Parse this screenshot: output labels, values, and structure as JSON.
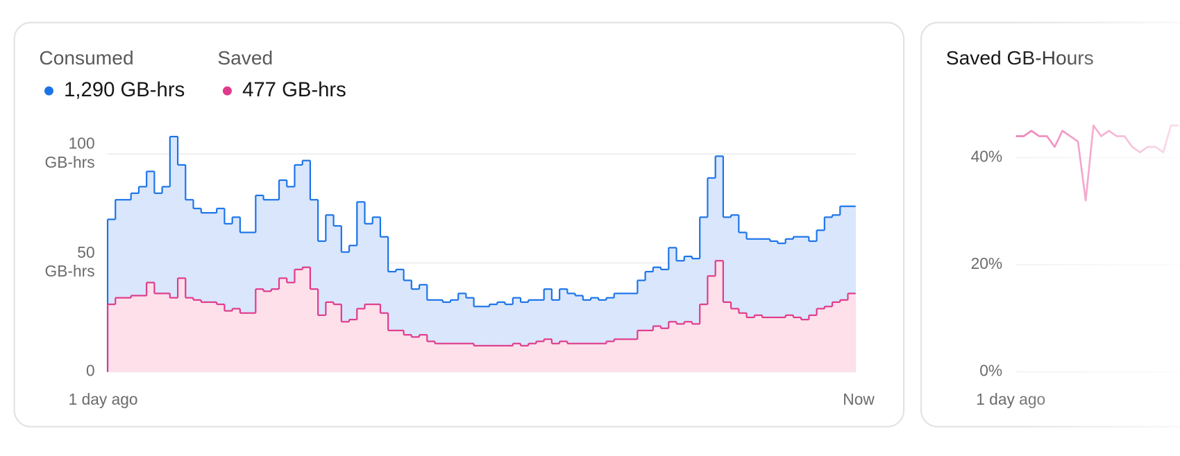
{
  "chart_data": [
    {
      "type": "area",
      "step": true,
      "x_start_label": "1 day ago",
      "x_end_label": "Now",
      "ylim": [
        0,
        110
      ],
      "yticks": [
        {
          "value": 0,
          "label": "0"
        },
        {
          "value": 50,
          "label": "50 GB-hrs"
        },
        {
          "value": 100,
          "label": "100 GB-hrs"
        }
      ],
      "grid": true,
      "series": [
        {
          "name": "Consumed",
          "total": "1,290 GB-hrs",
          "color": "#1a73e8",
          "fill": "#d9e6fb",
          "values": [
            70,
            79,
            79,
            82,
            85,
            92,
            82,
            85,
            108,
            95,
            79,
            75,
            73,
            73,
            75,
            68,
            71,
            64,
            64,
            81,
            79,
            79,
            88,
            85,
            95,
            97,
            79,
            60,
            72,
            67,
            55,
            58,
            78,
            68,
            71,
            62,
            46,
            47,
            42,
            38,
            40,
            33,
            33,
            32,
            33,
            36,
            34,
            30,
            30,
            31,
            32,
            31,
            34,
            32,
            33,
            33,
            38,
            33,
            38,
            36,
            35,
            33,
            34,
            33,
            34,
            36,
            36,
            36,
            42,
            46,
            48,
            47,
            57,
            51,
            53,
            52,
            71,
            89,
            99,
            71,
            72,
            64,
            61,
            61,
            61,
            60,
            59,
            61,
            62,
            62,
            60,
            65,
            71,
            72,
            76,
            76
          ]
        },
        {
          "name": "Saved",
          "total": "477 GB-hrs",
          "color": "#e0398a",
          "fill": "#fde0ea",
          "values": [
            31,
            34,
            34,
            35,
            35,
            41,
            36,
            36,
            34,
            43,
            34,
            33,
            32,
            32,
            31,
            28,
            29,
            27,
            27,
            38,
            37,
            38,
            43,
            41,
            47,
            48,
            38,
            26,
            32,
            31,
            23,
            24,
            29,
            31,
            31,
            27,
            19,
            19,
            17,
            16,
            17,
            14,
            13,
            13,
            13,
            13,
            13,
            12,
            12,
            12,
            12,
            12,
            13,
            12,
            13,
            14,
            15,
            13,
            14,
            13,
            13,
            13,
            13,
            13,
            14,
            15,
            15,
            15,
            19,
            19,
            21,
            20,
            23,
            22,
            23,
            22,
            31,
            44,
            51,
            32,
            29,
            27,
            25,
            26,
            25,
            25,
            25,
            26,
            25,
            24,
            26,
            29,
            30,
            32,
            33,
            36
          ]
        }
      ]
    },
    {
      "type": "line",
      "title": "Saved GB-Hours",
      "x_start_label": "1 day ago",
      "color": "#ee7fb5",
      "ylim": [
        0,
        50
      ],
      "yticks": [
        {
          "value": 0,
          "label": "0%"
        },
        {
          "value": 20,
          "label": "20%"
        },
        {
          "value": 40,
          "label": "40%"
        }
      ],
      "grid": true,
      "values": [
        44,
        44,
        45,
        44,
        44,
        42,
        45,
        44,
        43,
        32,
        46,
        44,
        45,
        44,
        44,
        42,
        41,
        42,
        42,
        41,
        46,
        46
      ]
    }
  ]
}
